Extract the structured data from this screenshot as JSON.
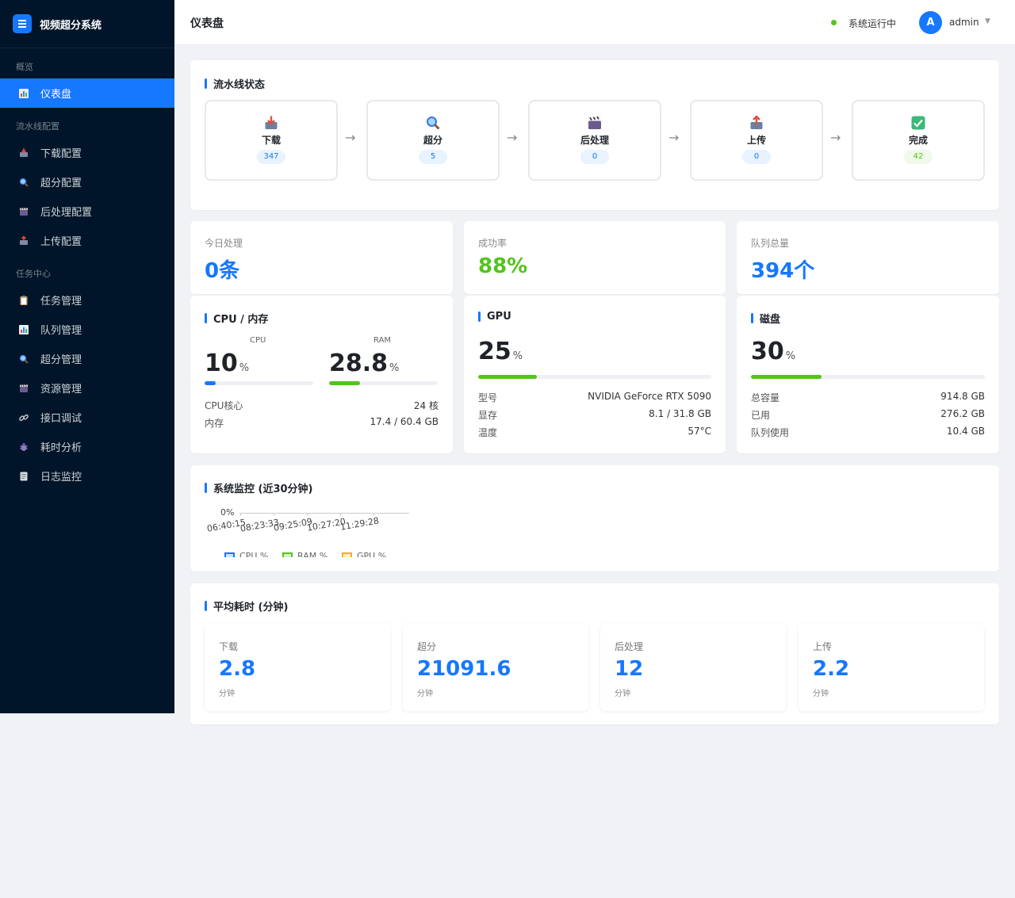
{
  "brand": {
    "title": "视频超分系统"
  },
  "sidebar": {
    "groups": [
      {
        "label": "概览"
      },
      {
        "label": "流水线配置"
      },
      {
        "label": "任务中心"
      }
    ],
    "items": [
      {
        "label": "仪表盘",
        "icon": "bar-chart-icon"
      },
      {
        "label": "下载配置",
        "icon": "inbox-tray-icon"
      },
      {
        "label": "超分配置",
        "icon": "magnifier-icon"
      },
      {
        "label": "后处理配置",
        "icon": "clapper-icon"
      },
      {
        "label": "上传配置",
        "icon": "outbox-tray-icon"
      },
      {
        "label": "任务管理",
        "icon": "clipboard-icon"
      },
      {
        "label": "队列管理",
        "icon": "bar-chart-icon"
      },
      {
        "label": "超分管理",
        "icon": "magnifier-icon"
      },
      {
        "label": "资源管理",
        "icon": "clapper-icon"
      },
      {
        "label": "接口调试",
        "icon": "link-icon"
      },
      {
        "label": "耗时分析",
        "icon": "bug-icon"
      },
      {
        "label": "日志监控",
        "icon": "notepad-icon"
      }
    ]
  },
  "header": {
    "title": "仪表盘",
    "status": "系统运行中",
    "avatar": "A",
    "user": "admin",
    "caret": "▼"
  },
  "pipeline": {
    "title": "流水线状态",
    "arrow": "→",
    "stages": [
      {
        "label": "下载",
        "count": "347",
        "icon": "inbox-tray-icon"
      },
      {
        "label": "超分",
        "count": "5",
        "icon": "magnifier-icon"
      },
      {
        "label": "后处理",
        "count": "0",
        "icon": "clapper-icon"
      },
      {
        "label": "上传",
        "count": "0",
        "icon": "outbox-tray-icon"
      },
      {
        "label": "完成",
        "count": "42",
        "icon": "check-icon"
      }
    ]
  },
  "stats": [
    {
      "label": "今日处理",
      "value": "0条",
      "color": "#1677ff"
    },
    {
      "label": "成功率",
      "value": "88%",
      "color": "#52c41a"
    },
    {
      "label": "队列总量",
      "value": "394个",
      "color": "#1677ff"
    }
  ],
  "cpu": {
    "title": "CPU / 内存",
    "cpu_label": "CPU",
    "cpu_value": "10",
    "cpu_unit": "%",
    "cpu_percent": 10,
    "ram_label": "RAM",
    "ram_value": "28.8",
    "ram_unit": "%",
    "ram_percent": 28.8,
    "rows": [
      {
        "k": "CPU核心",
        "v": "24 核"
      },
      {
        "k": "内存",
        "v": "17.4 / 60.4 GB"
      }
    ]
  },
  "gpu": {
    "title": "GPU",
    "value": "25",
    "unit": "%",
    "percent": 25,
    "rows": [
      {
        "k": "型号",
        "v": "NVIDIA GeForce RTX 5090"
      },
      {
        "k": "显存",
        "v": "8.1 / 31.8 GB"
      },
      {
        "k": "温度",
        "v": "57°C"
      }
    ]
  },
  "disk": {
    "title": "磁盘",
    "value": "30",
    "unit": "%",
    "percent": 30,
    "rows": [
      {
        "k": "总容量",
        "v": "914.8 GB"
      },
      {
        "k": "已用",
        "v": "276.2 GB"
      },
      {
        "k": "队列使用",
        "v": "10.4 GB"
      }
    ]
  },
  "monitor": {
    "title": "系统监控 (近30分钟)",
    "chart_data": {
      "type": "line",
      "x": [
        "06:40:15",
        "08:23:33",
        "09:25:09",
        "10:27:20",
        "11:29:28"
      ],
      "y_tick": "0%",
      "series": [
        {
          "name": "CPU %",
          "color": "#1677ff"
        },
        {
          "name": "RAM %",
          "color": "#52c41a"
        },
        {
          "name": "GPU %",
          "color": "#faad14"
        }
      ]
    }
  },
  "timing": {
    "title": "平均耗时 (分钟)",
    "unit": "分钟",
    "items": [
      {
        "label": "下载",
        "value": "2.8"
      },
      {
        "label": "超分",
        "value": "21091.6"
      },
      {
        "label": "后处理",
        "value": "12"
      },
      {
        "label": "上传",
        "value": "2.2"
      }
    ]
  },
  "colors": {
    "accent": "#1677ff",
    "success": "#52c41a",
    "warning": "#faad14",
    "sidebar": "#001529"
  }
}
